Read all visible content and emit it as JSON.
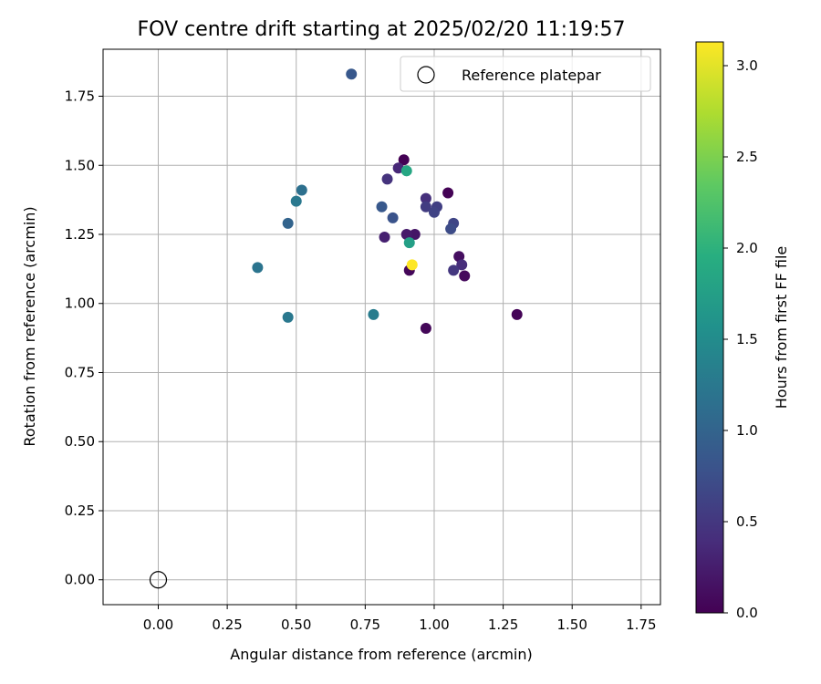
{
  "chart_data": {
    "type": "scatter",
    "title": "FOV centre drift starting at 2025/02/20 11:19:57",
    "xlabel": "Angular distance from reference (arcmin)",
    "ylabel": "Rotation from reference (arcmin)",
    "xlim": [
      -0.2,
      1.82
    ],
    "ylim": [
      -0.09,
      1.92
    ],
    "xticks": [
      0.0,
      0.25,
      0.5,
      0.75,
      1.0,
      1.25,
      1.5,
      1.75
    ],
    "xtick_labels": [
      "0.00",
      "0.25",
      "0.50",
      "0.75",
      "1.00",
      "1.25",
      "1.50",
      "1.75"
    ],
    "yticks": [
      0.0,
      0.25,
      0.5,
      0.75,
      1.0,
      1.25,
      1.5,
      1.75
    ],
    "ytick_labels": [
      "0.00",
      "0.25",
      "0.50",
      "0.75",
      "1.00",
      "1.25",
      "1.50",
      "1.75"
    ],
    "grid": true,
    "legend": {
      "position": "top-right",
      "entries": [
        "Reference platepar"
      ]
    },
    "reference_point": {
      "x": 0.0,
      "y": 0.0,
      "marker": "open-circle"
    },
    "colorbar": {
      "label": "Hours from first FF file",
      "min": 0.0,
      "max": 3.13,
      "ticks": [
        0.0,
        0.5,
        1.0,
        1.5,
        2.0,
        2.5,
        3.0
      ],
      "tick_labels": [
        "0.0",
        "0.5",
        "1.0",
        "1.5",
        "2.0",
        "2.5",
        "3.0"
      ],
      "colormap": "viridis"
    },
    "points": [
      {
        "x": 0.89,
        "y": 1.52,
        "hours": 0.0
      },
      {
        "x": 1.05,
        "y": 1.4,
        "hours": 0.02
      },
      {
        "x": 0.91,
        "y": 1.12,
        "hours": 0.05
      },
      {
        "x": 0.97,
        "y": 0.91,
        "hours": 0.05
      },
      {
        "x": 1.3,
        "y": 0.96,
        "hours": 0.03
      },
      {
        "x": 1.11,
        "y": 1.1,
        "hours": 0.08
      },
      {
        "x": 1.09,
        "y": 1.17,
        "hours": 0.12
      },
      {
        "x": 0.93,
        "y": 1.25,
        "hours": 0.18
      },
      {
        "x": 0.9,
        "y": 1.25,
        "hours": 0.22
      },
      {
        "x": 0.82,
        "y": 1.24,
        "hours": 0.28
      },
      {
        "x": 0.87,
        "y": 1.49,
        "hours": 0.35
      },
      {
        "x": 0.83,
        "y": 1.45,
        "hours": 0.45
      },
      {
        "x": 1.1,
        "y": 1.14,
        "hours": 0.4
      },
      {
        "x": 0.97,
        "y": 1.38,
        "hours": 0.42
      },
      {
        "x": 1.07,
        "y": 1.12,
        "hours": 0.5
      },
      {
        "x": 0.97,
        "y": 1.35,
        "hours": 0.55
      },
      {
        "x": 1.01,
        "y": 1.35,
        "hours": 0.58
      },
      {
        "x": 1.0,
        "y": 1.33,
        "hours": 0.62
      },
      {
        "x": 1.07,
        "y": 1.29,
        "hours": 0.65
      },
      {
        "x": 1.06,
        "y": 1.27,
        "hours": 0.72
      },
      {
        "x": 0.85,
        "y": 1.31,
        "hours": 0.8
      },
      {
        "x": 0.81,
        "y": 1.35,
        "hours": 0.85
      },
      {
        "x": 0.7,
        "y": 1.83,
        "hours": 0.85
      },
      {
        "x": 0.47,
        "y": 1.29,
        "hours": 1.0
      },
      {
        "x": 0.52,
        "y": 1.41,
        "hours": 1.15
      },
      {
        "x": 0.5,
        "y": 1.37,
        "hours": 1.25
      },
      {
        "x": 0.36,
        "y": 1.13,
        "hours": 1.2
      },
      {
        "x": 0.47,
        "y": 0.95,
        "hours": 1.25
      },
      {
        "x": 0.78,
        "y": 0.96,
        "hours": 1.3
      },
      {
        "x": 0.91,
        "y": 1.22,
        "hours": 1.75
      },
      {
        "x": 0.9,
        "y": 1.48,
        "hours": 1.85
      },
      {
        "x": 0.92,
        "y": 1.14,
        "hours": 3.13
      }
    ]
  }
}
